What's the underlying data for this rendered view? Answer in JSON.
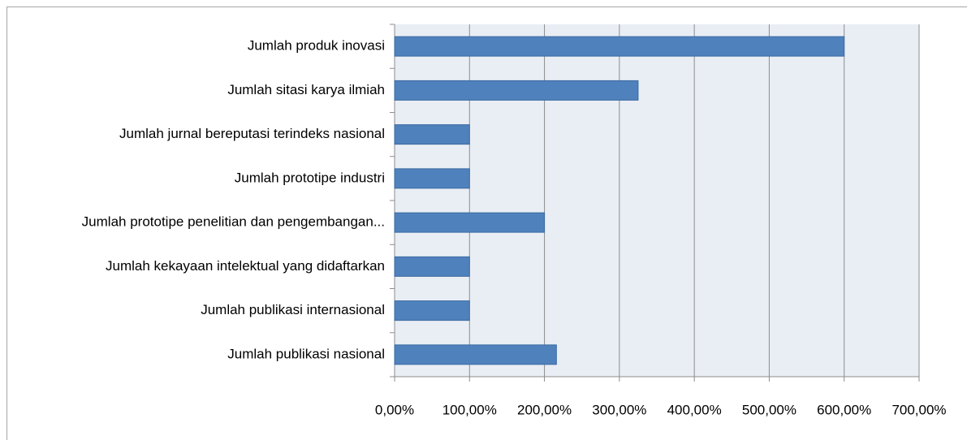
{
  "chart_data": {
    "type": "bar",
    "orientation": "horizontal",
    "categories": [
      "Jumlah produk inovasi",
      "Jumlah sitasi karya ilmiah",
      "Jumlah jurnal bereputasi terindeks nasional",
      "Jumlah prototipe industri",
      "Jumlah prototipe penelitian dan pengembangan...",
      "Jumlah kekayaan intelektual yang didaftarkan",
      "Jumlah publikasi internasional",
      "Jumlah publikasi nasional"
    ],
    "values": [
      600,
      325,
      100,
      100,
      200,
      100,
      100,
      216
    ],
    "color": "#4f81bd",
    "xlim": [
      0,
      700
    ],
    "xticks": [
      {
        "value": 0,
        "label": "0,00%"
      },
      {
        "value": 100,
        "label": "100,00%"
      },
      {
        "value": 200,
        "label": "200,00%"
      },
      {
        "value": 300,
        "label": "300,00%"
      },
      {
        "value": 400,
        "label": "400,00%"
      },
      {
        "value": 500,
        "label": "500,00%"
      },
      {
        "value": 600,
        "label": "600,00%"
      },
      {
        "value": 700,
        "label": "700,00%"
      }
    ],
    "grid": true
  }
}
